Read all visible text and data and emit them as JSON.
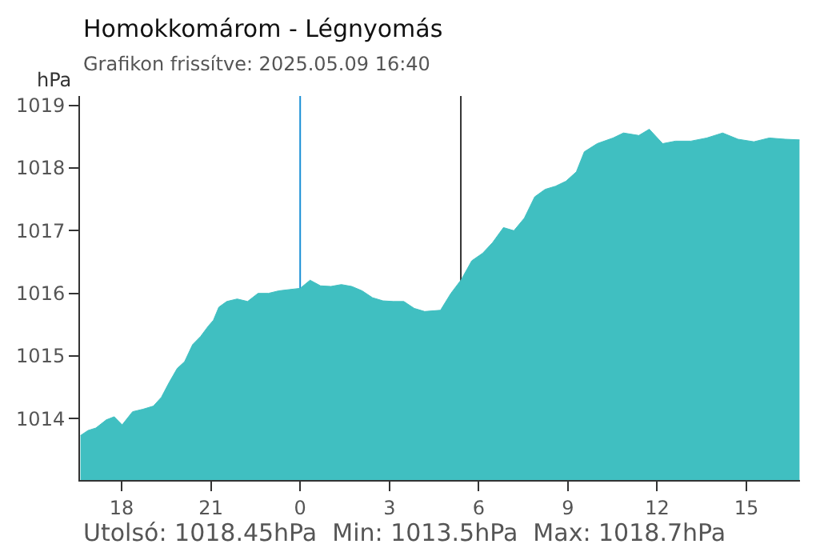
{
  "chart_data": {
    "type": "area",
    "title": "Homokkomárom - Légnyomás",
    "subtitle": "Grafikon frissítve: 2025.05.09 16:40",
    "ylabel": "hPa",
    "annotations": [
      "Utolsó: 1018.45hPa  Min: 1013.5hPa  Max: 1018.7hPa"
    ],
    "x": [
      "2025-05-08T16:37",
      "2025-05-08T16:52",
      "2025-05-08T17:08",
      "2025-05-08T17:29",
      "2025-05-08T17:45",
      "2025-05-08T18:01",
      "2025-05-08T18:22",
      "2025-05-08T18:43",
      "2025-05-08T19:04",
      "2025-05-08T19:20",
      "2025-05-08T19:36",
      "2025-05-08T19:52",
      "2025-05-08T20:07",
      "2025-05-08T20:23",
      "2025-05-08T20:39",
      "2025-05-08T20:55",
      "2025-05-08T21:05",
      "2025-05-08T21:16",
      "2025-05-08T21:32",
      "2025-05-08T21:53",
      "2025-05-08T22:14",
      "2025-05-08T22:35",
      "2025-05-08T22:56",
      "2025-05-08T23:17",
      "2025-05-08T23:38",
      "2025-05-09T00:00",
      "2025-05-09T00:20",
      "2025-05-09T00:41",
      "2025-05-09T01:02",
      "2025-05-09T01:23",
      "2025-05-09T01:44",
      "2025-05-09T02:05",
      "2025-05-09T02:26",
      "2025-05-09T02:47",
      "2025-05-09T03:08",
      "2025-05-09T03:29",
      "2025-05-09T03:50",
      "2025-05-09T04:11",
      "2025-05-09T04:43",
      "2025-05-09T05:04",
      "2025-05-09T05:25",
      "2025-05-09T05:46",
      "2025-05-09T06:08",
      "2025-05-09T06:28",
      "2025-05-09T06:50",
      "2025-05-09T07:11",
      "2025-05-09T07:32",
      "2025-05-09T07:53",
      "2025-05-09T08:14",
      "2025-05-09T08:35",
      "2025-05-09T08:56",
      "2025-05-09T09:17",
      "2025-05-09T09:33",
      "2025-05-09T09:59",
      "2025-05-09T10:31",
      "2025-05-09T10:52",
      "2025-05-09T11:23",
      "2025-05-09T11:44",
      "2025-05-09T12:11",
      "2025-05-09T12:37",
      "2025-05-09T13:08",
      "2025-05-09T13:40",
      "2025-05-09T14:12",
      "2025-05-09T14:43",
      "2025-05-09T15:15",
      "2025-05-09T15:46",
      "2025-05-09T16:18",
      "2025-05-09T16:47"
    ],
    "series": [
      {
        "color": "#40bfc1",
        "values": [
          1013.73,
          1013.81,
          1013.85,
          1013.98,
          1014.03,
          1013.9,
          1014.11,
          1014.15,
          1014.2,
          1014.34,
          1014.58,
          1014.8,
          1014.91,
          1015.18,
          1015.31,
          1015.48,
          1015.57,
          1015.78,
          1015.87,
          1015.91,
          1015.87,
          1016.0,
          1016.0,
          1016.04,
          1016.06,
          1016.08,
          1016.21,
          1016.12,
          1016.11,
          1016.14,
          1016.11,
          1016.04,
          1015.93,
          1015.88,
          1015.87,
          1015.87,
          1015.76,
          1015.71,
          1015.73,
          1016.0,
          1016.22,
          1016.52,
          1016.64,
          1016.81,
          1017.05,
          1017.0,
          1017.2,
          1017.54,
          1017.66,
          1017.71,
          1017.79,
          1017.94,
          1018.26,
          1018.39,
          1018.48,
          1018.56,
          1018.52,
          1018.62,
          1018.39,
          1018.43,
          1018.43,
          1018.48,
          1018.56,
          1018.46,
          1018.42,
          1018.48,
          1018.46,
          1018.45
        ]
      }
    ],
    "xlim": [
      "2025-05-08T16:36",
      "2025-05-09T16:48"
    ],
    "xticks": [
      {
        "value": "2025-05-08T18:00",
        "label": "18"
      },
      {
        "value": "2025-05-08T21:00",
        "label": "21"
      },
      {
        "value": "2025-05-09T00:00",
        "label": "0"
      },
      {
        "value": "2025-05-09T03:00",
        "label": "3"
      },
      {
        "value": "2025-05-09T06:00",
        "label": "6"
      },
      {
        "value": "2025-05-09T09:00",
        "label": "9"
      },
      {
        "value": "2025-05-09T12:00",
        "label": "12"
      },
      {
        "value": "2025-05-09T15:00",
        "label": "15"
      }
    ],
    "ylim": [
      1013.02,
      1019.15
    ],
    "yticks": [
      1014,
      1015,
      1016,
      1017,
      1018,
      1019
    ],
    "ref_lines": [
      {
        "axis": "x",
        "value": "2025-05-09T00:00",
        "color": "#1a8fd6"
      },
      {
        "axis": "x",
        "value": "2025-05-09T05:24",
        "color": "#333333"
      }
    ],
    "grid": false
  }
}
